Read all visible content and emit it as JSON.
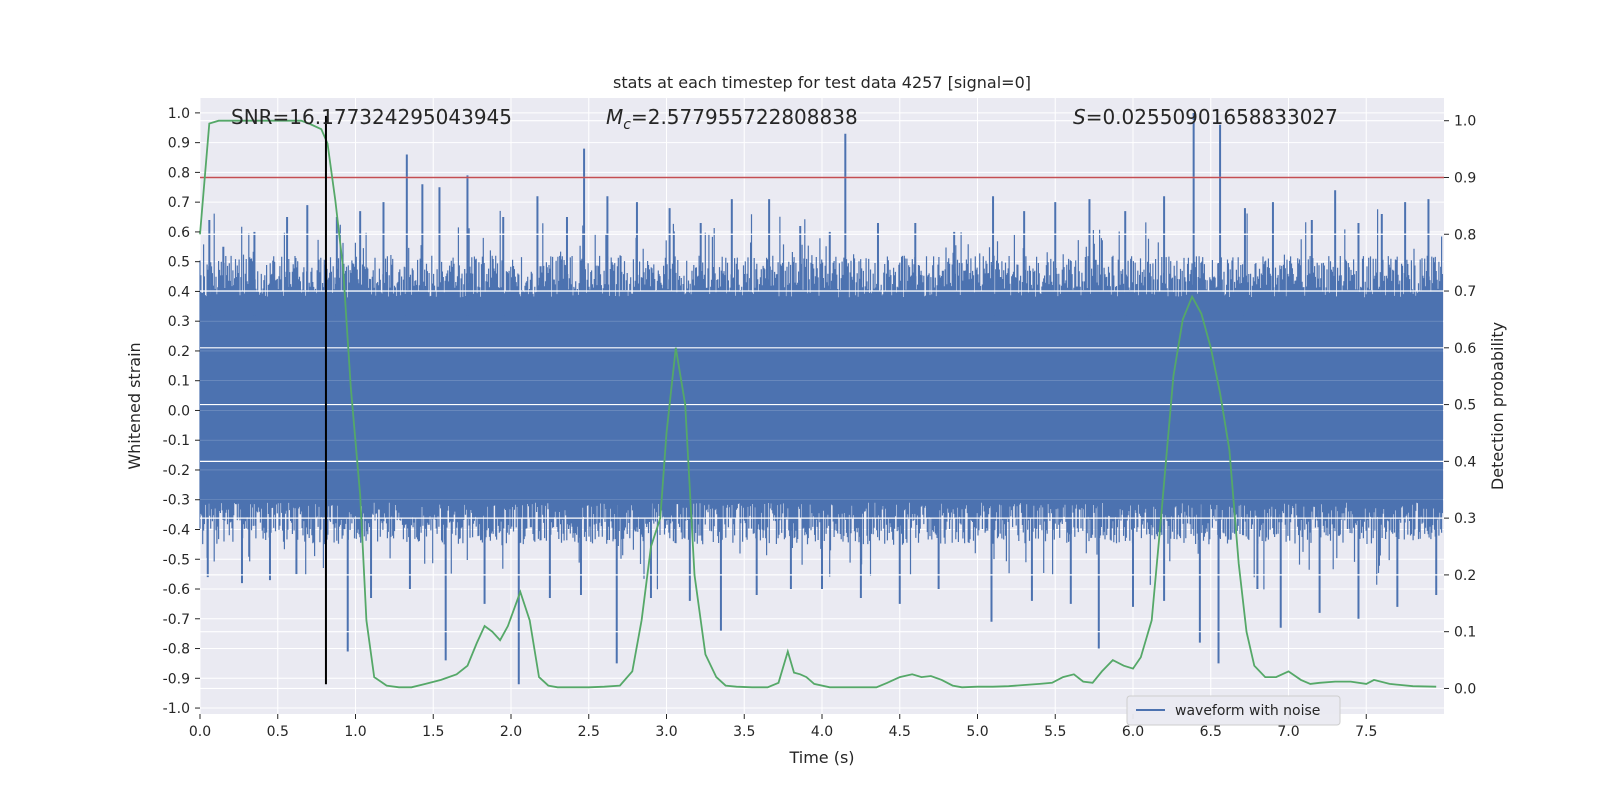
{
  "chart_data": {
    "type": "line",
    "title": "stats at each timestep for test data 4257 [signal=0]",
    "xlabel": "Time (s)",
    "ylabel": "Whitened strain",
    "y2label": "Detection probability",
    "xlim": [
      0.0,
      8.0
    ],
    "ylim": [
      -1.02,
      1.05
    ],
    "y2lim": [
      -0.045,
      1.04
    ],
    "x_ticks": [
      0.0,
      0.5,
      1.0,
      1.5,
      2.0,
      2.5,
      3.0,
      3.5,
      4.0,
      4.5,
      5.0,
      5.5,
      6.0,
      6.5,
      7.0,
      7.5
    ],
    "x_tick_labels": [
      "0.0",
      "0.5",
      "1.0",
      "1.5",
      "2.0",
      "2.5",
      "3.0",
      "3.5",
      "4.0",
      "4.5",
      "5.0",
      "5.5",
      "6.0",
      "6.5",
      "7.0",
      "7.5"
    ],
    "y_ticks": [
      1.0,
      0.9,
      0.8,
      0.7,
      0.6,
      0.5,
      0.4,
      0.3,
      0.2,
      0.1,
      0.0,
      -0.1,
      -0.2,
      -0.3,
      -0.4,
      -0.5,
      -0.6,
      -0.7,
      -0.8,
      -0.9,
      -1.0
    ],
    "y_tick_labels": [
      "1.0",
      "0.9",
      "0.8",
      "0.7",
      "0.6",
      "0.5",
      "0.4",
      "0.3",
      "0.2",
      "0.1",
      "0.0",
      "-0.1",
      "-0.2",
      "-0.3",
      "-0.4",
      "-0.5",
      "-0.6",
      "-0.7",
      "-0.8",
      "-0.9",
      "-1.0"
    ],
    "y2_ticks": [
      1.0,
      0.9,
      0.8,
      0.7,
      0.6,
      0.5,
      0.4,
      0.3,
      0.2,
      0.1,
      0.0
    ],
    "y2_tick_labels": [
      "1.0",
      "0.9",
      "0.8",
      "0.7",
      "0.6",
      "0.5",
      "0.4",
      "0.3",
      "0.2",
      "0.1",
      "0.0"
    ],
    "grid": true,
    "legend_position": "bottom-right",
    "waveform": {
      "name": "waveform with noise",
      "color": "#4c72b0",
      "x_range": [
        0.0,
        7.99
      ],
      "typical_band": [
        -0.35,
        0.42
      ],
      "peaks": [
        {
          "x": 0.06,
          "y": 0.64
        },
        {
          "x": 0.15,
          "y": 0.55
        },
        {
          "x": 0.35,
          "y": 0.6
        },
        {
          "x": 0.56,
          "y": 0.65
        },
        {
          "x": 0.69,
          "y": 0.69
        },
        {
          "x": 0.88,
          "y": 0.65
        },
        {
          "x": 1.03,
          "y": 0.67
        },
        {
          "x": 1.18,
          "y": 0.7
        },
        {
          "x": 1.33,
          "y": 0.86
        },
        {
          "x": 1.43,
          "y": 0.76
        },
        {
          "x": 1.54,
          "y": 0.75
        },
        {
          "x": 1.72,
          "y": 0.79
        },
        {
          "x": 1.95,
          "y": 0.65
        },
        {
          "x": 2.17,
          "y": 0.72
        },
        {
          "x": 2.36,
          "y": 0.65
        },
        {
          "x": 2.47,
          "y": 0.88
        },
        {
          "x": 2.62,
          "y": 0.72
        },
        {
          "x": 2.81,
          "y": 0.7
        },
        {
          "x": 3.02,
          "y": 0.68
        },
        {
          "x": 3.22,
          "y": 0.63
        },
        {
          "x": 3.42,
          "y": 0.71
        },
        {
          "x": 3.66,
          "y": 0.71
        },
        {
          "x": 3.86,
          "y": 0.62
        },
        {
          "x": 4.05,
          "y": 0.6
        },
        {
          "x": 4.15,
          "y": 0.93
        },
        {
          "x": 4.36,
          "y": 0.63
        },
        {
          "x": 4.6,
          "y": 0.63
        },
        {
          "x": 4.85,
          "y": 0.6
        },
        {
          "x": 5.1,
          "y": 0.72
        },
        {
          "x": 5.3,
          "y": 0.67
        },
        {
          "x": 5.5,
          "y": 0.7
        },
        {
          "x": 5.72,
          "y": 0.71
        },
        {
          "x": 5.95,
          "y": 0.67
        },
        {
          "x": 6.2,
          "y": 0.72
        },
        {
          "x": 6.39,
          "y": 1.0
        },
        {
          "x": 6.56,
          "y": 0.96
        },
        {
          "x": 6.72,
          "y": 0.68
        },
        {
          "x": 6.9,
          "y": 0.7
        },
        {
          "x": 7.15,
          "y": 0.64
        },
        {
          "x": 7.3,
          "y": 0.74
        },
        {
          "x": 7.45,
          "y": 0.63
        },
        {
          "x": 7.6,
          "y": 0.66
        },
        {
          "x": 7.75,
          "y": 0.7
        },
        {
          "x": 7.9,
          "y": 0.71
        }
      ],
      "troughs": [
        {
          "x": 0.05,
          "y": -0.56
        },
        {
          "x": 0.27,
          "y": -0.58
        },
        {
          "x": 0.45,
          "y": -0.57
        },
        {
          "x": 0.62,
          "y": -0.55
        },
        {
          "x": 0.95,
          "y": -0.81
        },
        {
          "x": 1.1,
          "y": -0.63
        },
        {
          "x": 1.35,
          "y": -0.6
        },
        {
          "x": 1.58,
          "y": -0.84
        },
        {
          "x": 1.83,
          "y": -0.65
        },
        {
          "x": 2.05,
          "y": -0.92
        },
        {
          "x": 2.25,
          "y": -0.63
        },
        {
          "x": 2.45,
          "y": -0.62
        },
        {
          "x": 2.68,
          "y": -0.85
        },
        {
          "x": 2.9,
          "y": -0.63
        },
        {
          "x": 3.15,
          "y": -0.64
        },
        {
          "x": 3.35,
          "y": -0.74
        },
        {
          "x": 3.58,
          "y": -0.62
        },
        {
          "x": 3.8,
          "y": -0.6
        },
        {
          "x": 4.0,
          "y": -0.6
        },
        {
          "x": 4.25,
          "y": -0.63
        },
        {
          "x": 4.5,
          "y": -0.65
        },
        {
          "x": 4.75,
          "y": -0.6
        },
        {
          "x": 5.09,
          "y": -0.71
        },
        {
          "x": 5.35,
          "y": -0.64
        },
        {
          "x": 5.6,
          "y": -0.65
        },
        {
          "x": 5.78,
          "y": -0.8
        },
        {
          "x": 6.0,
          "y": -0.66
        },
        {
          "x": 6.2,
          "y": -0.64
        },
        {
          "x": 6.43,
          "y": -0.78
        },
        {
          "x": 6.55,
          "y": -0.85
        },
        {
          "x": 6.8,
          "y": -0.6
        },
        {
          "x": 6.95,
          "y": -0.73
        },
        {
          "x": 7.2,
          "y": -0.68
        },
        {
          "x": 7.45,
          "y": -0.7
        },
        {
          "x": 7.7,
          "y": -0.66
        },
        {
          "x": 7.95,
          "y": -0.62
        }
      ]
    },
    "detection_probability": {
      "axis": "right",
      "color": "#55a868",
      "x": [
        0.0,
        0.06,
        0.12,
        0.2,
        0.3,
        0.4,
        0.5,
        0.6,
        0.65,
        0.7,
        0.78,
        0.82,
        0.87,
        0.92,
        0.97,
        1.03,
        1.07,
        1.12,
        1.2,
        1.28,
        1.36,
        1.45,
        1.55,
        1.65,
        1.72,
        1.78,
        1.83,
        1.88,
        1.93,
        1.98,
        2.06,
        2.12,
        2.18,
        2.24,
        2.3,
        2.4,
        2.5,
        2.6,
        2.7,
        2.78,
        2.84,
        2.9,
        2.96,
        3.0,
        3.06,
        3.12,
        3.18,
        3.25,
        3.32,
        3.38,
        3.45,
        3.55,
        3.65,
        3.72,
        3.78,
        3.82,
        3.86,
        3.9,
        3.95,
        4.05,
        4.15,
        4.25,
        4.35,
        4.42,
        4.5,
        4.58,
        4.64,
        4.7,
        4.77,
        4.84,
        4.9,
        5.0,
        5.1,
        5.2,
        5.3,
        5.4,
        5.48,
        5.55,
        5.62,
        5.68,
        5.74,
        5.8,
        5.87,
        5.94,
        6.0,
        6.05,
        6.12,
        6.18,
        6.26,
        6.32,
        6.38,
        6.44,
        6.5,
        6.56,
        6.62,
        6.68,
        6.73,
        6.78,
        6.85,
        6.92,
        7.0,
        7.08,
        7.14,
        7.2,
        7.3,
        7.4,
        7.5,
        7.55,
        7.65,
        7.8,
        7.95
      ],
      "y": [
        0.8,
        0.995,
        1.0,
        1.0,
        1.0,
        1.0,
        1.0,
        1.0,
        1.0,
        0.995,
        0.985,
        0.96,
        0.86,
        0.74,
        0.53,
        0.34,
        0.12,
        0.02,
        0.005,
        0.002,
        0.002,
        0.008,
        0.015,
        0.025,
        0.04,
        0.08,
        0.11,
        0.1,
        0.085,
        0.11,
        0.17,
        0.12,
        0.02,
        0.005,
        0.002,
        0.002,
        0.002,
        0.003,
        0.005,
        0.03,
        0.12,
        0.25,
        0.3,
        0.45,
        0.6,
        0.5,
        0.2,
        0.06,
        0.02,
        0.005,
        0.003,
        0.002,
        0.002,
        0.01,
        0.065,
        0.028,
        0.025,
        0.02,
        0.008,
        0.002,
        0.002,
        0.002,
        0.002,
        0.01,
        0.02,
        0.025,
        0.02,
        0.022,
        0.015,
        0.005,
        0.002,
        0.003,
        0.003,
        0.004,
        0.006,
        0.008,
        0.01,
        0.02,
        0.025,
        0.012,
        0.01,
        0.03,
        0.05,
        0.04,
        0.035,
        0.055,
        0.12,
        0.3,
        0.55,
        0.65,
        0.69,
        0.66,
        0.6,
        0.52,
        0.42,
        0.22,
        0.1,
        0.04,
        0.02,
        0.02,
        0.03,
        0.015,
        0.008,
        0.01,
        0.012,
        0.012,
        0.008,
        0.015,
        0.008,
        0.004,
        0.003
      ]
    },
    "threshold_line": {
      "axis": "right",
      "y": 0.9,
      "color": "#c44e52"
    },
    "vertical_marker": {
      "x": 0.81,
      "y_range": [
        -0.92,
        0.99
      ],
      "color": "#000000"
    },
    "annotations": [
      {
        "text": "SNR=16.177324295043945",
        "x": 0.2
      },
      {
        "text_prefix": "M",
        "text_subscript": "c",
        "text_suffix": "=2.577955722808838",
        "x": 2.6
      },
      {
        "text_prefix": "S",
        "text_suffix": "=0.025509016588330​27",
        "x": 5.6
      }
    ],
    "legend": [
      {
        "label": "waveform with noise",
        "color": "#4c72b0"
      }
    ]
  },
  "colors": {
    "plot_background": "#eaeaf2",
    "grid": "#ffffff",
    "figure_background": "#ffffff"
  }
}
